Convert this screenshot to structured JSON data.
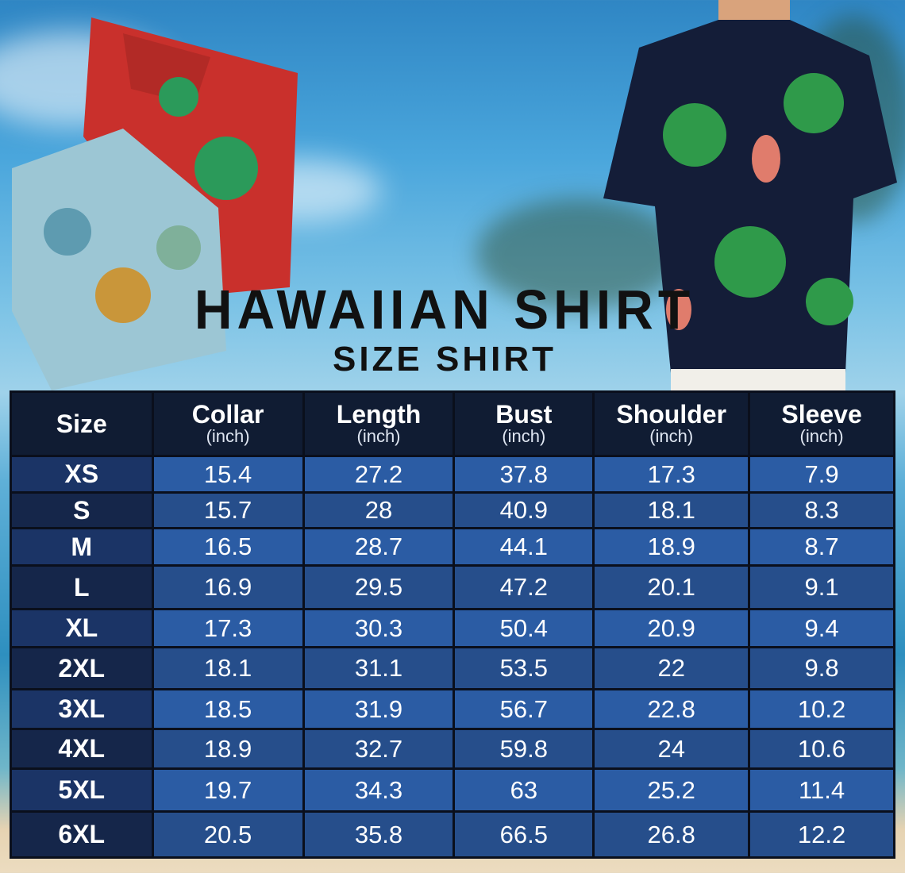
{
  "title": "HAWAIIAN SHIRT",
  "subtitle": "SIZE SHIRT",
  "colors": {
    "header": "#101c33",
    "cell_light": "#2b5ca4",
    "cell_dark": "#264e8b",
    "size_col": "#15264a"
  },
  "table": {
    "headers": [
      {
        "label": "Size",
        "unit": ""
      },
      {
        "label": "Collar",
        "unit": "(inch)"
      },
      {
        "label": "Length",
        "unit": "(inch)"
      },
      {
        "label": "Bust",
        "unit": "(inch)"
      },
      {
        "label": "Shoulder",
        "unit": "(inch)"
      },
      {
        "label": "Sleeve",
        "unit": "(inch)"
      }
    ],
    "rows": [
      [
        "XS",
        "15.4",
        "27.2",
        "37.8",
        "17.3",
        "7.9"
      ],
      [
        "S",
        "15.7",
        "28",
        "40.9",
        "18.1",
        "8.3"
      ],
      [
        "M",
        "16.5",
        "28.7",
        "44.1",
        "18.9",
        "8.7"
      ],
      [
        "L",
        "16.9",
        "29.5",
        "47.2",
        "20.1",
        "9.1"
      ],
      [
        "XL",
        "17.3",
        "30.3",
        "50.4",
        "20.9",
        "9.4"
      ],
      [
        "2XL",
        "18.1",
        "31.1",
        "53.5",
        "22",
        "9.8"
      ],
      [
        "3XL",
        "18.5",
        "31.9",
        "56.7",
        "22.8",
        "10.2"
      ],
      [
        "4XL",
        "18.9",
        "32.7",
        "59.8",
        "24",
        "10.6"
      ],
      [
        "5XL",
        "19.7",
        "34.3",
        "63",
        "25.2",
        "11.4"
      ],
      [
        "6XL",
        "20.5",
        "35.8",
        "66.5",
        "26.8",
        "12.2"
      ]
    ]
  }
}
